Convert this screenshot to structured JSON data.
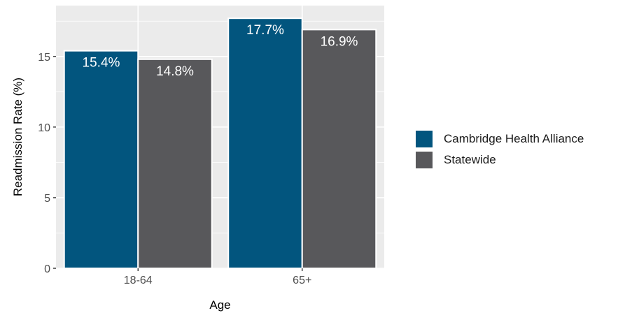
{
  "chart_data": {
    "type": "bar",
    "xlabel": "Age",
    "ylabel": "Readmission Rate (%)",
    "categories": [
      "18-64",
      "65+"
    ],
    "series": [
      {
        "name": "Cambridge Health Alliance",
        "values": [
          15.4,
          17.7
        ],
        "labels": [
          "15.4%",
          "17.7%"
        ],
        "color": "#02557e"
      },
      {
        "name": "Statewide",
        "values": [
          14.8,
          16.9
        ],
        "labels": [
          "14.8%",
          "16.9%"
        ],
        "color": "#58585b"
      }
    ],
    "ylim": [
      0,
      18.6
    ],
    "yticks": [
      0,
      5,
      10,
      15
    ],
    "grid": true,
    "legend_position": "right",
    "panel_background": "#ebebeb"
  }
}
